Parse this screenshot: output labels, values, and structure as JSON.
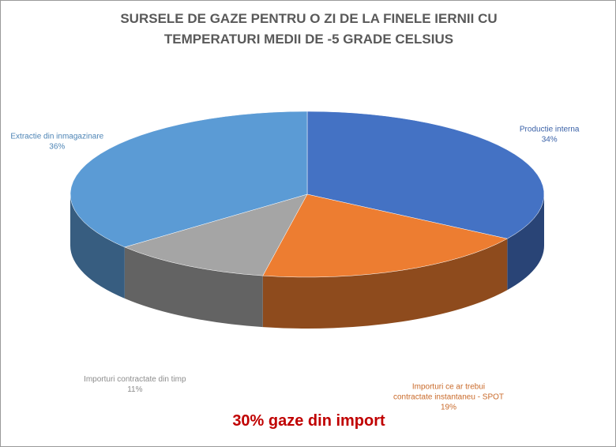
{
  "chart_data": {
    "type": "pie",
    "title": "SURSELE DE GAZE PENTRU O ZI DE LA FINELE IERNII CU TEMPERATURI MEDII DE -5 GRADE CELSIUS",
    "categories": [
      "Productie interna",
      "Importuri ce ar trebui contractate instantaneu - SPOT",
      "Importuri contractate din timp",
      "Extractie din inmagazinare"
    ],
    "values": [
      34,
      19,
      11,
      36
    ],
    "value_labels": [
      "34%",
      "19%",
      "11%",
      "36%"
    ],
    "colors": [
      "#4472c4",
      "#ed7d31",
      "#a5a5a5",
      "#5b9bd5"
    ],
    "annotation": "30% gaze din import"
  }
}
